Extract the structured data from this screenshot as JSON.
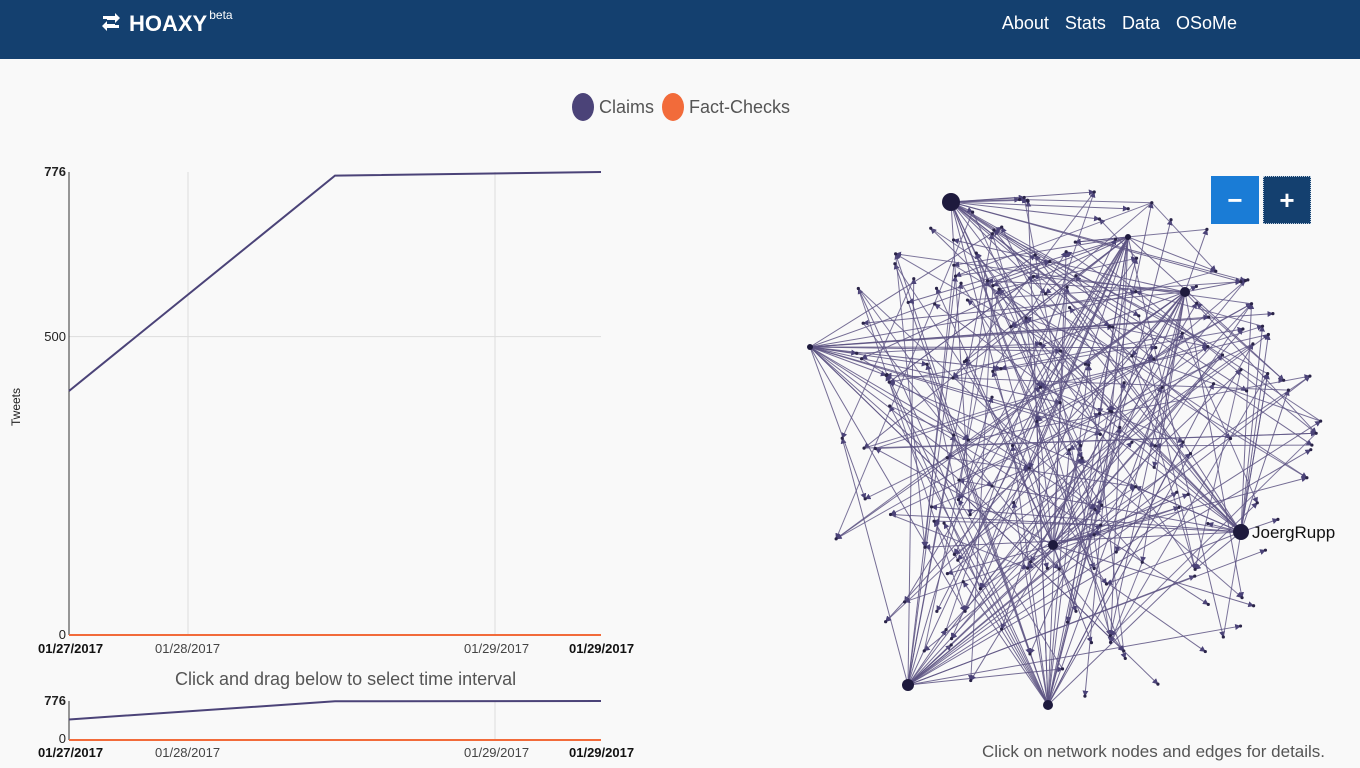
{
  "nav": {
    "brand": "HOAXY",
    "brand_sup": "beta",
    "links": [
      "About",
      "Stats",
      "Data",
      "OSoMe"
    ]
  },
  "legend": {
    "claims": "Claims",
    "factchecks": "Fact-Checks",
    "claims_color": "#4b4378",
    "factchecks_color": "#f26b3a"
  },
  "chart_data": [
    {
      "type": "line",
      "ylabel": "Tweets",
      "yticks": [
        "776",
        "500",
        "0"
      ],
      "ylim": [
        0,
        776
      ],
      "xticks": [
        "01/27/2017",
        "01/28/2017",
        "01/29/2017",
        "01/29/2017"
      ],
      "grid": true,
      "series": [
        {
          "name": "Claims",
          "x": [
            "01/27/2017",
            "01/28/2017 (mid)",
            "01/29/2017"
          ],
          "values": [
            409,
            770,
            776
          ]
        },
        {
          "name": "Fact-Checks",
          "x": [
            "01/27/2017",
            "01/29/2017"
          ],
          "values": [
            0,
            0
          ]
        }
      ]
    },
    {
      "type": "line",
      "yticks": [
        "776",
        "0"
      ],
      "ylim": [
        0,
        776
      ],
      "xticks": [
        "01/27/2017",
        "01/28/2017",
        "01/29/2017",
        "01/29/2017"
      ],
      "series": [
        {
          "name": "Claims",
          "values": [
            409,
            770,
            776
          ]
        },
        {
          "name": "Fact-Checks",
          "values": [
            0,
            0
          ]
        }
      ]
    }
  ],
  "timeline_hint": "Click and drag below to select time interval",
  "network": {
    "node_label": "JoergRupp",
    "note": "Click on network nodes and edges for details.",
    "zoom_out": "−",
    "zoom_in": "+"
  }
}
